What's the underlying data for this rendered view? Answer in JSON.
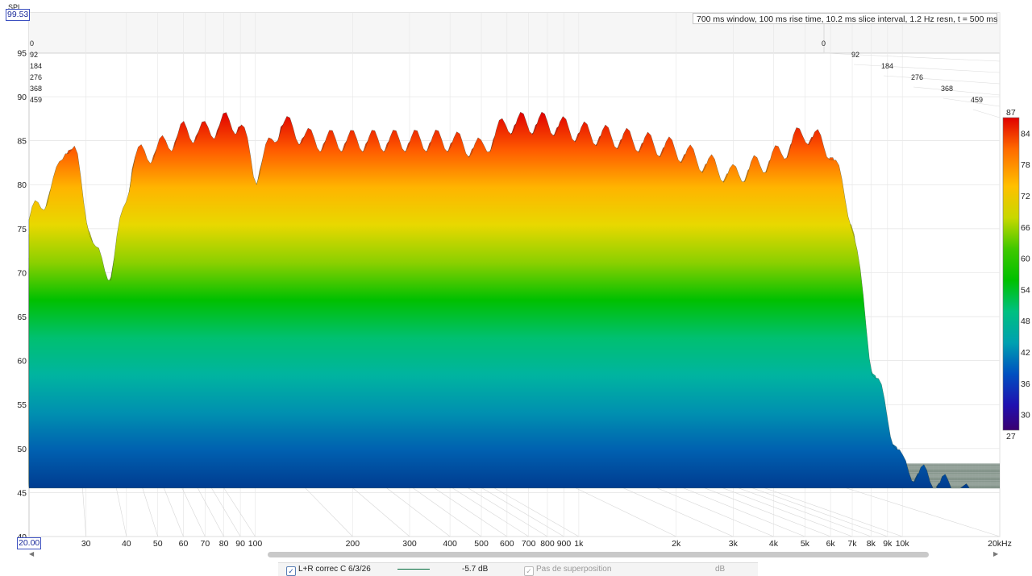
{
  "chart_data": {
    "type": "waterfall-3d",
    "ylabel": "SPL",
    "y_max_value": "99.53",
    "x_min_value": "20.00",
    "info": "700 ms window, 100 ms rise time, 10.2 ms slice interval, 1.2 Hz resn, t = 500 ms",
    "y_ticks": [
      "40",
      "45",
      "50",
      "55",
      "60",
      "65",
      "70",
      "75",
      "80",
      "85",
      "90",
      "95"
    ],
    "x_ticks": [
      {
        "label": "30",
        "value": 30
      },
      {
        "label": "40",
        "value": 40
      },
      {
        "label": "50",
        "value": 50
      },
      {
        "label": "60",
        "value": 60
      },
      {
        "label": "70",
        "value": 70
      },
      {
        "label": "80",
        "value": 80
      },
      {
        "label": "90",
        "value": 90
      },
      {
        "label": "100",
        "value": 100
      },
      {
        "label": "200",
        "value": 200
      },
      {
        "label": "300",
        "value": 300
      },
      {
        "label": "400",
        "value": 400
      },
      {
        "label": "500",
        "value": 500
      },
      {
        "label": "600",
        "value": 600
      },
      {
        "label": "700",
        "value": 700
      },
      {
        "label": "800",
        "value": 800
      },
      {
        "label": "900",
        "value": 900
      },
      {
        "label": "1k",
        "value": 1000
      },
      {
        "label": "2k",
        "value": 2000
      },
      {
        "label": "3k",
        "value": 3000
      },
      {
        "label": "4k",
        "value": 4000
      },
      {
        "label": "5k",
        "value": 5000
      },
      {
        "label": "6k",
        "value": 6000
      },
      {
        "label": "7k",
        "value": 7000
      },
      {
        "label": "8k",
        "value": 8000
      },
      {
        "label": "9k",
        "value": 9000
      },
      {
        "label": "10k",
        "value": 10000
      },
      {
        "label": "20kHz",
        "value": 20000
      }
    ],
    "x_range": [
      20,
      20000
    ],
    "y_range": [
      40,
      99.53
    ],
    "x_scale": "log",
    "time_ticks": [
      "0",
      "92",
      "184",
      "276",
      "368",
      "459"
    ],
    "colorbar": {
      "max_label": "87",
      "min_label": "27",
      "ticks": [
        "84",
        "78",
        "72",
        "66",
        "60",
        "54",
        "48",
        "42",
        "36",
        "30"
      ],
      "range": [
        27,
        87
      ]
    },
    "front_slice_peaks": [
      {
        "freq": 20,
        "spl": 76
      },
      {
        "freq": 24,
        "spl": 80
      },
      {
        "freq": 26,
        "spl": 85
      },
      {
        "freq": 28,
        "spl": 83
      },
      {
        "freq": 32,
        "spl": 72
      },
      {
        "freq": 36,
        "spl": 70
      },
      {
        "freq": 42,
        "spl": 83
      },
      {
        "freq": 50,
        "spl": 84
      },
      {
        "freq": 60,
        "spl": 86
      },
      {
        "freq": 70,
        "spl": 86
      },
      {
        "freq": 80,
        "spl": 87
      },
      {
        "freq": 90,
        "spl": 87
      },
      {
        "freq": 100,
        "spl": 81
      },
      {
        "freq": 120,
        "spl": 87
      },
      {
        "freq": 150,
        "spl": 85
      },
      {
        "freq": 200,
        "spl": 85
      },
      {
        "freq": 300,
        "spl": 85
      },
      {
        "freq": 400,
        "spl": 85
      },
      {
        "freq": 500,
        "spl": 84
      },
      {
        "freq": 600,
        "spl": 87
      },
      {
        "freq": 800,
        "spl": 87
      },
      {
        "freq": 1000,
        "spl": 86
      },
      {
        "freq": 1500,
        "spl": 85
      },
      {
        "freq": 2000,
        "spl": 84
      },
      {
        "freq": 3000,
        "spl": 81
      },
      {
        "freq": 4000,
        "spl": 83
      },
      {
        "freq": 5000,
        "spl": 86
      },
      {
        "freq": 6000,
        "spl": 84
      },
      {
        "freq": 7000,
        "spl": 76
      },
      {
        "freq": 8000,
        "spl": 60
      },
      {
        "freq": 10000,
        "spl": 48
      },
      {
        "freq": 20000,
        "spl": 43
      }
    ]
  },
  "legend": {
    "trace_name": "L+R correc C 6/3/26",
    "trace_offset": "-5.7 dB",
    "overlay_label": "Pas de superposition",
    "overlay_unit": "dB",
    "trace_color": "#006b3c"
  }
}
